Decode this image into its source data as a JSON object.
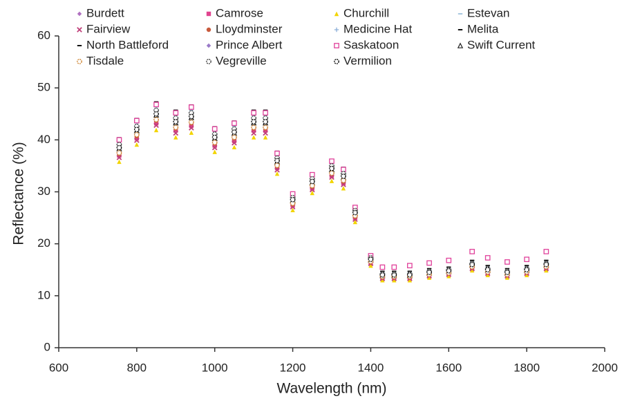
{
  "chart_data": {
    "type": "scatter",
    "x_label": "Wavelength (nm)",
    "y_label": "Reflectance (%)",
    "xlim": [
      600,
      2000
    ],
    "xticks": [
      600,
      800,
      1000,
      1200,
      1400,
      1600,
      1800,
      2000
    ],
    "ylim": [
      0,
      60
    ],
    "yticks": [
      0,
      10,
      20,
      30,
      40,
      50,
      60
    ],
    "legend": "top",
    "x": [
      755,
      800,
      850,
      900,
      940,
      1000,
      1050,
      1100,
      1130,
      1160,
      1200,
      1250,
      1300,
      1330,
      1360,
      1400,
      1430,
      1460,
      1500,
      1550,
      1600,
      1660,
      1700,
      1750,
      1800,
      1850
    ],
    "series": [
      {
        "name": "Burdett",
        "color": "#b070c0",
        "marker": "diamond",
        "values": [
          37.7,
          41.2,
          44.1,
          42.6,
          43.6,
          39.7,
          40.7,
          42.6,
          42.6,
          35.3,
          27.9,
          31.4,
          33.8,
          32.3,
          25.5,
          16.7,
          13.7,
          13.7,
          13.7,
          14.2,
          14.5,
          15.7,
          14.7,
          14.2,
          14.7,
          15.7
        ]
      },
      {
        "name": "Camrose",
        "color": "#e0448f",
        "marker": "square",
        "values": [
          37.0,
          40.3,
          43.2,
          41.8,
          42.7,
          38.9,
          39.8,
          41.8,
          41.8,
          34.6,
          27.4,
          30.7,
          33.1,
          31.7,
          25.0,
          16.3,
          13.4,
          13.4,
          13.4,
          13.9,
          14.2,
          15.4,
          14.4,
          13.9,
          14.4,
          15.4
        ]
      },
      {
        "name": "Churchill",
        "color": "#f2d400",
        "marker": "triangle",
        "values": [
          35.8,
          39.1,
          41.9,
          40.5,
          41.4,
          37.7,
          38.6,
          40.5,
          40.5,
          33.5,
          26.5,
          29.8,
          32.1,
          30.7,
          24.2,
          15.8,
          13.0,
          13.0,
          13.0,
          13.5,
          13.8,
          14.9,
          14.0,
          13.5,
          14.0,
          14.9
        ]
      },
      {
        "name": "Estevan",
        "color": "#a8c8e0",
        "marker": "dash",
        "values": [
          39.7,
          43.3,
          46.4,
          44.8,
          45.8,
          41.7,
          42.7,
          44.8,
          44.8,
          37.1,
          29.4,
          33.0,
          35.5,
          34.0,
          26.8,
          17.5,
          14.4,
          14.4,
          14.4,
          14.9,
          15.2,
          16.5,
          15.5,
          14.9,
          15.5,
          16.5
        ]
      },
      {
        "name": "Fairview",
        "color": "#c0407a",
        "marker": "cross",
        "values": [
          36.6,
          39.9,
          42.8,
          41.3,
          42.3,
          38.5,
          39.4,
          41.3,
          41.3,
          34.2,
          27.1,
          30.4,
          32.8,
          31.4,
          24.7,
          16.2,
          13.3,
          13.3,
          13.3,
          13.8,
          14.1,
          15.2,
          14.3,
          13.8,
          14.3,
          15.2
        ]
      },
      {
        "name": "Lloydminster",
        "color": "#c85a3c",
        "marker": "circle",
        "values": [
          37.3,
          40.7,
          43.7,
          42.2,
          43.2,
          39.3,
          40.3,
          42.2,
          42.2,
          34.9,
          27.6,
          31.0,
          33.5,
          32.0,
          25.2,
          16.5,
          13.6,
          13.6,
          13.6,
          14.1,
          14.4,
          15.5,
          14.6,
          14.1,
          14.6,
          15.5
        ]
      },
      {
        "name": "Medicine Hat",
        "color": "#8aaed8",
        "marker": "plus",
        "values": [
          39.3,
          42.8,
          45.9,
          44.4,
          45.4,
          41.3,
          42.3,
          44.4,
          44.4,
          36.7,
          29.1,
          32.6,
          35.2,
          33.7,
          26.5,
          17.3,
          14.3,
          14.3,
          14.3,
          14.8,
          15.1,
          16.3,
          15.3,
          14.8,
          15.3,
          16.3
        ]
      },
      {
        "name": "Melita",
        "color": "#111111",
        "marker": "dash",
        "values": [
          40.4,
          44.1,
          47.3,
          45.7,
          46.7,
          42.5,
          43.6,
          45.7,
          45.7,
          37.8,
          29.9,
          33.6,
          36.2,
          34.7,
          27.3,
          17.9,
          14.7,
          14.7,
          14.7,
          15.2,
          15.5,
          16.8,
          15.8,
          15.2,
          15.8,
          16.8
        ]
      },
      {
        "name": "North Battleford",
        "color": "#111111",
        "marker": "dash",
        "values": [
          38.9,
          42.4,
          45.5,
          43.9,
          44.9,
          40.9,
          41.9,
          43.9,
          43.9,
          36.4,
          28.8,
          32.3,
          34.8,
          33.3,
          26.3,
          17.2,
          14.1,
          14.1,
          14.1,
          14.6,
          14.9,
          16.2,
          15.2,
          14.6,
          15.2,
          16.2
        ]
      },
      {
        "name": "Prince Albert",
        "color": "#9a7ac8",
        "marker": "diamond",
        "values": [
          38.1,
          41.6,
          44.6,
          43.1,
          44.1,
          40.1,
          41.1,
          43.1,
          43.1,
          35.6,
          28.2,
          31.7,
          34.2,
          32.7,
          25.7,
          16.8,
          13.9,
          13.9,
          13.9,
          14.4,
          14.7,
          15.8,
          14.9,
          14.4,
          14.9,
          15.8
        ]
      },
      {
        "name": "Saskatoon",
        "color": "#e0409a",
        "marker": "open-square",
        "values": [
          40.0,
          43.7,
          46.8,
          45.2,
          46.3,
          42.1,
          43.2,
          45.2,
          45.2,
          37.4,
          29.6,
          33.3,
          35.9,
          34.3,
          27.0,
          17.7,
          15.5,
          15.5,
          15.8,
          16.3,
          16.8,
          18.5,
          17.3,
          16.5,
          17.0,
          18.5
        ]
      },
      {
        "name": "Swift Current",
        "color": "#222222",
        "marker": "open-triangle",
        "values": [
          38.3,
          41.8,
          44.8,
          43.3,
          44.3,
          40.3,
          41.3,
          43.3,
          43.3,
          35.8,
          28.4,
          31.8,
          34.3,
          32.8,
          25.9,
          16.9,
          13.9,
          13.9,
          13.9,
          14.4,
          14.7,
          15.9,
          14.9,
          14.4,
          14.9,
          15.9
        ]
      },
      {
        "name": "Tisdale",
        "color": "#d08a3a",
        "marker": "open-circle",
        "values": [
          37.5,
          41.0,
          43.9,
          42.4,
          43.4,
          39.5,
          40.5,
          42.4,
          42.4,
          35.1,
          27.8,
          31.2,
          33.6,
          32.2,
          25.4,
          16.6,
          13.7,
          13.7,
          13.7,
          14.1,
          14.4,
          15.6,
          14.6,
          14.1,
          14.6,
          15.6
        ]
      },
      {
        "name": "Vegreville",
        "color": "#444444",
        "marker": "open-circle",
        "values": [
          39.1,
          42.6,
          45.7,
          44.2,
          45.2,
          41.1,
          42.1,
          44.2,
          44.2,
          36.5,
          28.9,
          32.5,
          35.0,
          33.5,
          26.4,
          17.3,
          14.2,
          14.2,
          14.2,
          14.7,
          15.0,
          16.2,
          15.2,
          14.7,
          15.2,
          16.2
        ]
      },
      {
        "name": "Vermilion",
        "color": "#111111",
        "marker": "open-circle",
        "values": [
          38.5,
          42,
          45,
          43.5,
          44.5,
          40.5,
          41.5,
          43.5,
          43.5,
          36,
          28.5,
          32,
          34.5,
          33,
          26,
          17,
          14,
          14,
          14,
          14.5,
          14.8,
          16,
          15,
          14.5,
          15,
          16
        ]
      }
    ]
  }
}
